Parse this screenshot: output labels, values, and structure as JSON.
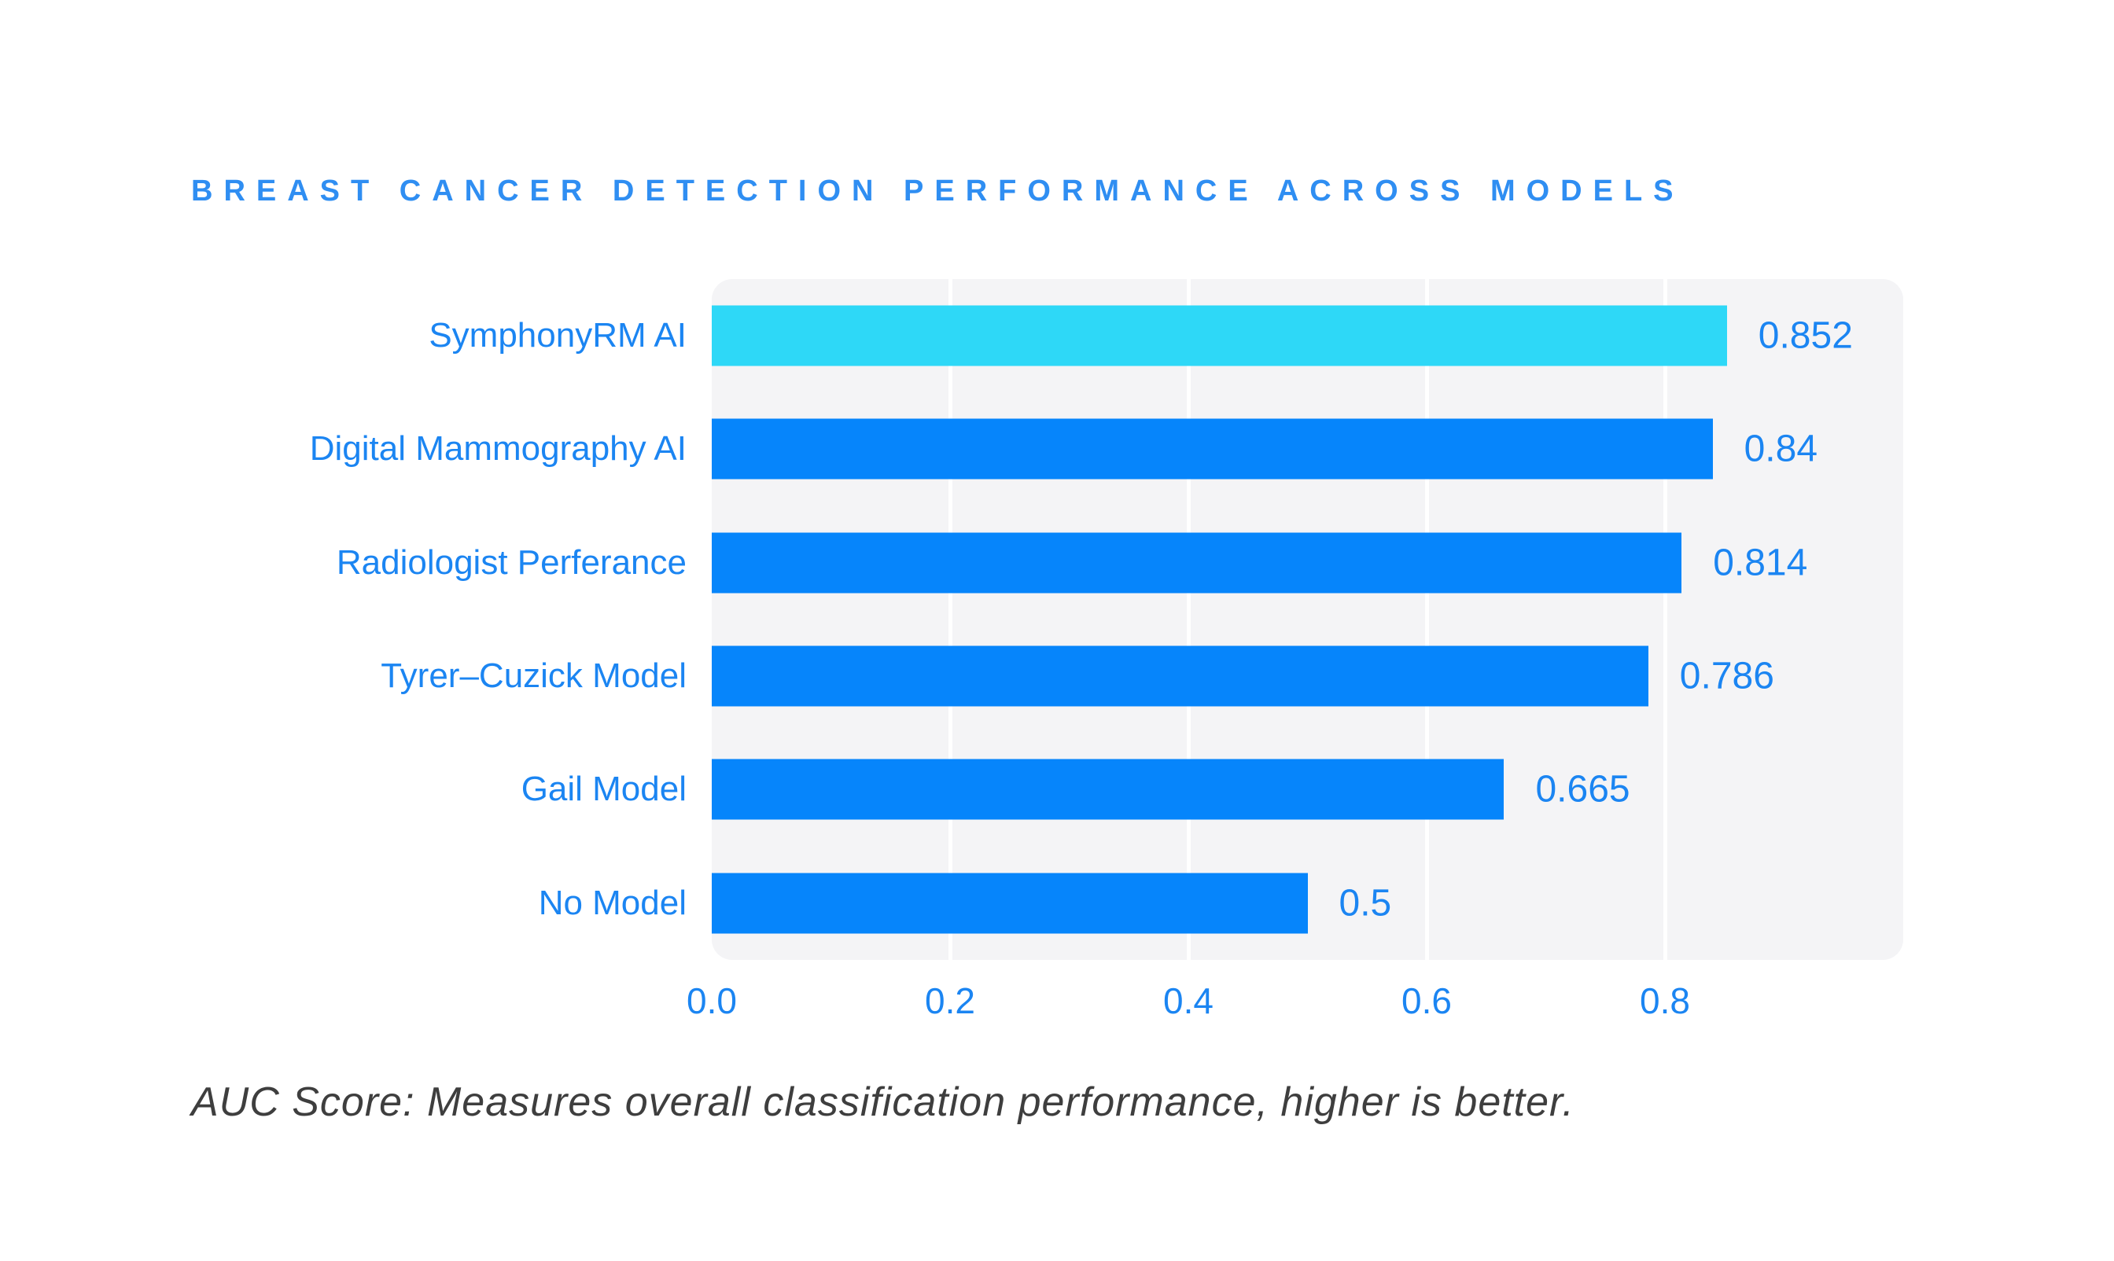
{
  "chart_data": {
    "type": "bar",
    "orientation": "horizontal",
    "title": "BREAST CANCER DETECTION PERFORMANCE ACROSS MODELS",
    "categories": [
      "SymphonyRM AI",
      "Digital Mammography AI",
      "Radiologist Perferance",
      "Tyrer–Cuzick Model",
      "Gail Model",
      "No Model"
    ],
    "values": [
      0.852,
      0.84,
      0.814,
      0.786,
      0.665,
      0.5
    ],
    "value_labels": [
      "0.852",
      "0.84",
      "0.814",
      "0.786",
      "0.665",
      "0.5"
    ],
    "bar_colors": [
      "#2ed8f7",
      "#0685fb",
      "#0685fb",
      "#0685fb",
      "#0685fb",
      "#0685fb"
    ],
    "xlabel": "",
    "ylabel": "",
    "xlim": [
      0,
      1.0
    ],
    "xticks": [
      0,
      0.2,
      0.4,
      0.6,
      0.8
    ],
    "xtick_labels": [
      "0.0",
      "0.2",
      "0.4",
      "0.6",
      "0.8"
    ],
    "grid": true,
    "legend": false,
    "note": "AUC Score: Measures overall classification performance, higher is better."
  },
  "colors": {
    "title": "#2f8ef2",
    "text_blue": "#1b85f2",
    "bar_blue": "#0685fb",
    "bar_cyan": "#2ed8f7",
    "plot_background": "#f4f4f6",
    "gridline": "#ffffff",
    "note_text": "#3e3e3e",
    "page_background": "#ffffff"
  }
}
